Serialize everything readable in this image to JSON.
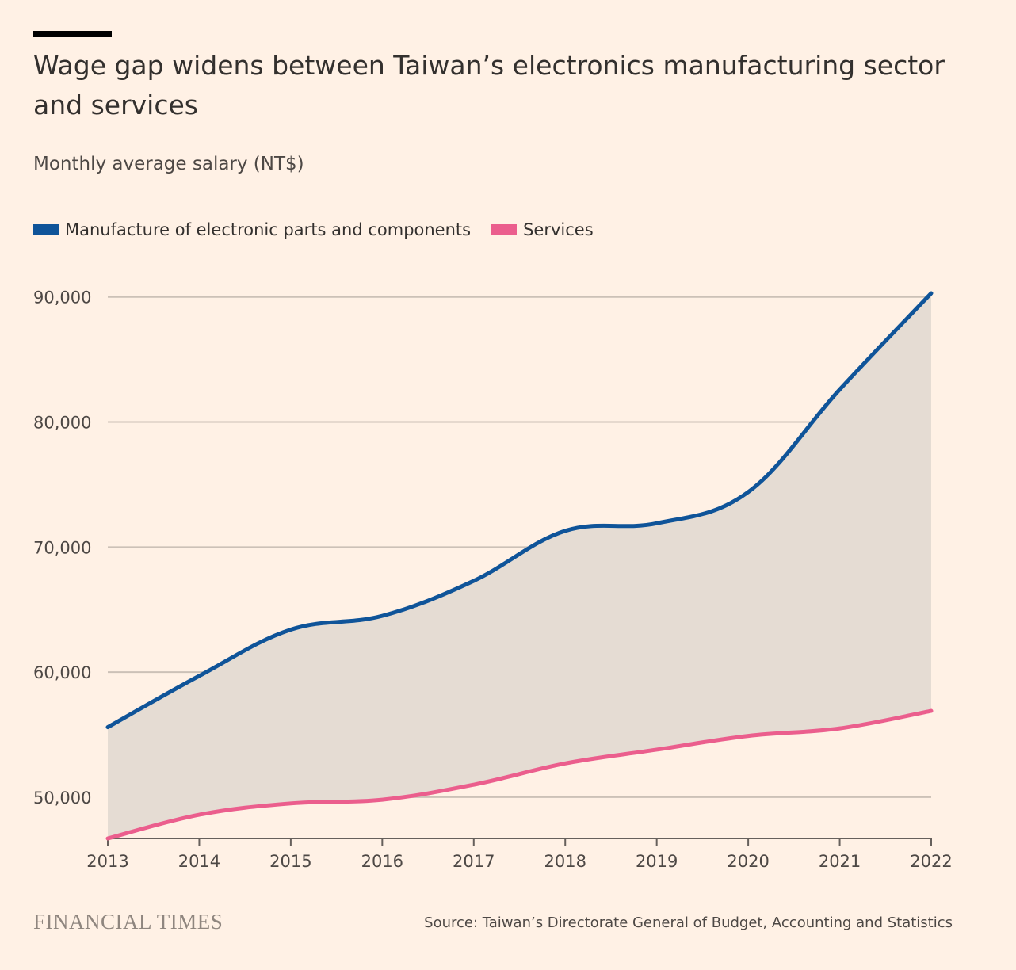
{
  "header": {
    "title": "Wage gap widens between Taiwan’s electronics manufacturing sector and services",
    "subtitle": "Monthly average salary (NT$)"
  },
  "legend": [
    {
      "label": "Manufacture of electronic parts and components",
      "color": "#0f5499"
    },
    {
      "label": "Services",
      "color": "#eb5e8d"
    }
  ],
  "footer": {
    "brand": "FINANCIAL TIMES",
    "source": "Source: Taiwan’s Directorate General of Budget, Accounting and Statistics"
  },
  "colors": {
    "background": "#fff1e5",
    "gap_fill": "#e5dcd3",
    "gridline": "#ccc1b7",
    "axis": "#66605c"
  },
  "chart_data": {
    "type": "line",
    "title": "Wage gap widens between Taiwan’s electronics manufacturing sector and services",
    "subtitle": "Monthly average salary (NT$)",
    "x": [
      2013,
      2014,
      2015,
      2016,
      2017,
      2018,
      2019,
      2020,
      2021,
      2022
    ],
    "x_tick_labels": [
      "2013",
      "2014",
      "2015",
      "2016",
      "2017",
      "2018",
      "2019",
      "2020",
      "2021",
      "2022"
    ],
    "y_ticks": [
      50000,
      60000,
      70000,
      80000,
      90000
    ],
    "y_tick_labels": [
      "50,000",
      "60,000",
      "70,000",
      "80,000",
      "90,000"
    ],
    "ylim": [
      46700,
      90300
    ],
    "grid": true,
    "legend_position": "top-left",
    "area_between_series": true,
    "series": [
      {
        "name": "Manufacture of electronic parts and components",
        "color": "#0f5499",
        "values": [
          55600,
          59700,
          63400,
          64500,
          67300,
          71300,
          71900,
          74400,
          82600,
          90300
        ]
      },
      {
        "name": "Services",
        "color": "#eb5e8d",
        "values": [
          46700,
          48600,
          49500,
          49800,
          51000,
          52700,
          53800,
          54900,
          55500,
          56900
        ]
      }
    ]
  }
}
